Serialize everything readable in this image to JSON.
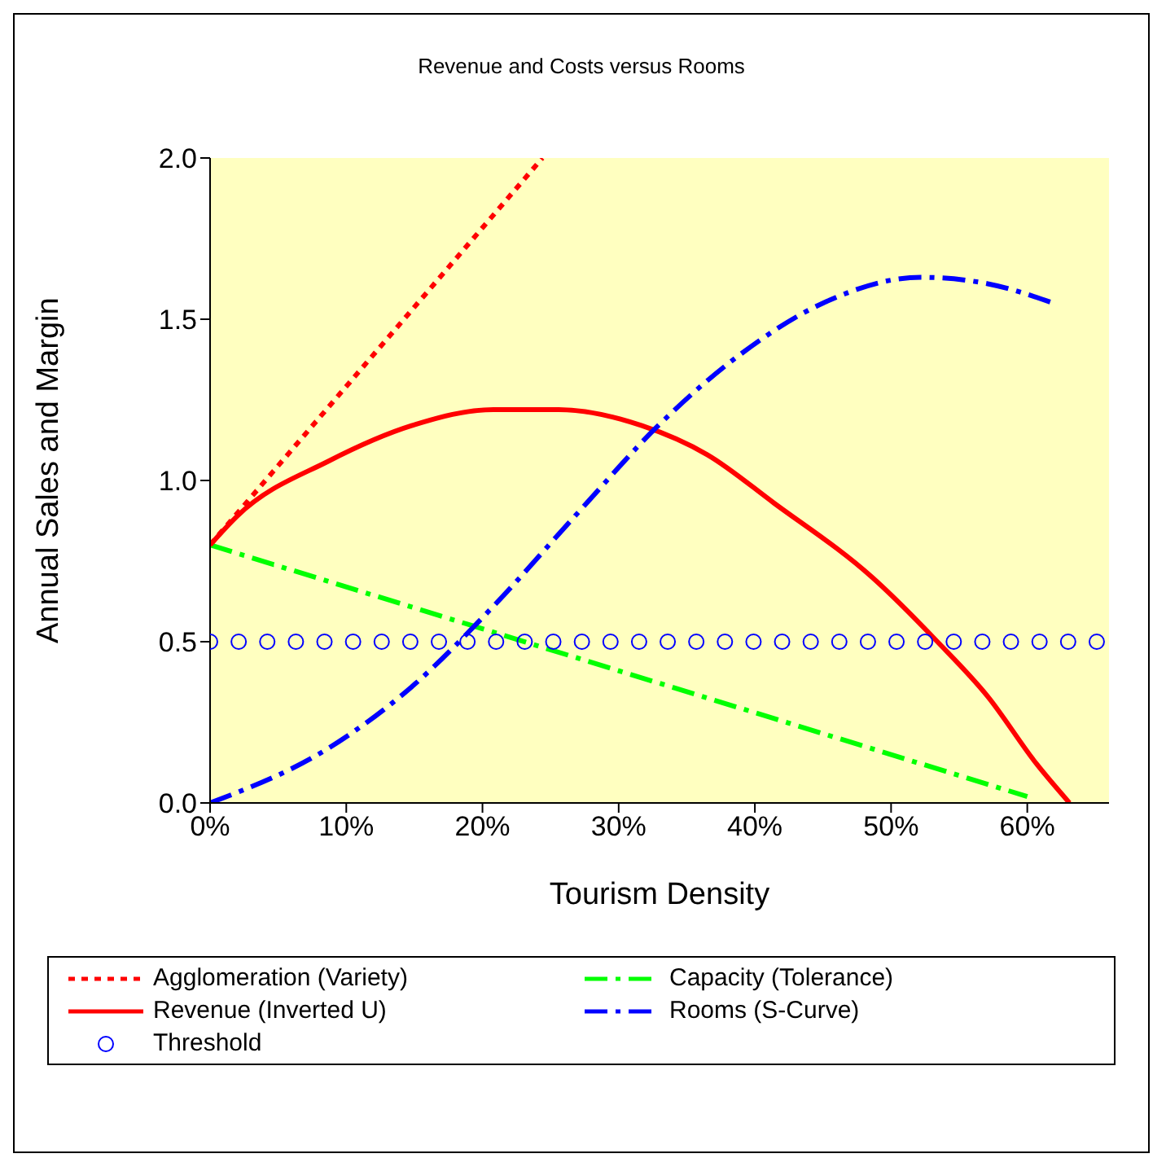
{
  "chart_data": {
    "type": "line",
    "title": "Revenue and Costs versus Rooms",
    "xlabel": "Tourism Density",
    "ylabel": "Annual Sales and  Margin",
    "xlim": [
      0,
      66
    ],
    "xticks": [
      {
        "value": 0,
        "label": "0%"
      },
      {
        "value": 10,
        "label": "10%"
      },
      {
        "value": 20,
        "label": "20%"
      },
      {
        "value": 30,
        "label": "30%"
      },
      {
        "value": 40,
        "label": "40%"
      },
      {
        "value": 50,
        "label": "50%"
      },
      {
        "value": 60,
        "label": "60%"
      }
    ],
    "ylim": [
      0,
      2
    ],
    "yticks": [
      {
        "value": 0,
        "label": "0.0"
      },
      {
        "value": 0.5,
        "label": "0.5"
      },
      {
        "value": 1,
        "label": "1.0"
      },
      {
        "value": 1.5,
        "label": "1.5"
      },
      {
        "value": 2,
        "label": "2.0"
      }
    ],
    "grid": false,
    "legend": "bottom",
    "series": [
      {
        "name": "Agglomeration (Variety)",
        "line_style": "dotted",
        "color": "#ff0000",
        "x": [
          0,
          12.2,
          24.4
        ],
        "values": [
          0.8,
          1.4,
          2.0
        ]
      },
      {
        "name": "Capacity (Tolerance)",
        "line_style": "dashed",
        "color": "#00ff00",
        "x": [
          0,
          20,
          40,
          60
        ],
        "values": [
          0.8,
          0.54,
          0.28,
          0.02
        ]
      },
      {
        "name": "Revenue (Inverted U)",
        "line_style": "solid",
        "color": "#ff0000",
        "x": [
          0,
          2,
          8.7,
          14.8,
          20.8,
          25.6,
          31.7,
          36.5,
          41.4,
          48.6,
          53.4,
          57.1,
          60.7,
          63.1
        ],
        "values": [
          0.8,
          0.89,
          1.06,
          1.17,
          1.22,
          1.22,
          1.17,
          1.08,
          0.93,
          0.7,
          0.5,
          0.33,
          0.12,
          0
        ]
      },
      {
        "name": "Rooms (S-Curve)",
        "line_style": "dashed",
        "color": "#0000ff",
        "x": [
          0,
          8.7,
          14.8,
          20.8,
          26.8,
          32.9,
          38.9,
          45,
          52.2,
          57.1,
          61.9
        ],
        "values": [
          0,
          0.17,
          0.36,
          0.61,
          0.89,
          1.17,
          1.39,
          1.55,
          1.63,
          1.61,
          1.55
        ]
      },
      {
        "name": "Threshold",
        "type": "scatter",
        "marker": "circle",
        "color": "#0000ff",
        "x": [
          0,
          2.1,
          4.2,
          6.3,
          8.4,
          10.5,
          12.6,
          14.7,
          16.8,
          18.9,
          21,
          23.1,
          25.2,
          27.3,
          29.4,
          31.5,
          33.6,
          35.7,
          37.8,
          39.9,
          42,
          44.1,
          46.2,
          48.3,
          50.4,
          52.5,
          54.6,
          56.7,
          58.8,
          60.9,
          63,
          65.1
        ],
        "values": [
          0.5,
          0.5,
          0.5,
          0.5,
          0.5,
          0.5,
          0.5,
          0.5,
          0.5,
          0.5,
          0.5,
          0.5,
          0.5,
          0.5,
          0.5,
          0.5,
          0.5,
          0.5,
          0.5,
          0.5,
          0.5,
          0.5,
          0.5,
          0.5,
          0.5,
          0.5,
          0.5,
          0.5,
          0.5,
          0.5,
          0.5,
          0.5
        ]
      }
    ]
  }
}
